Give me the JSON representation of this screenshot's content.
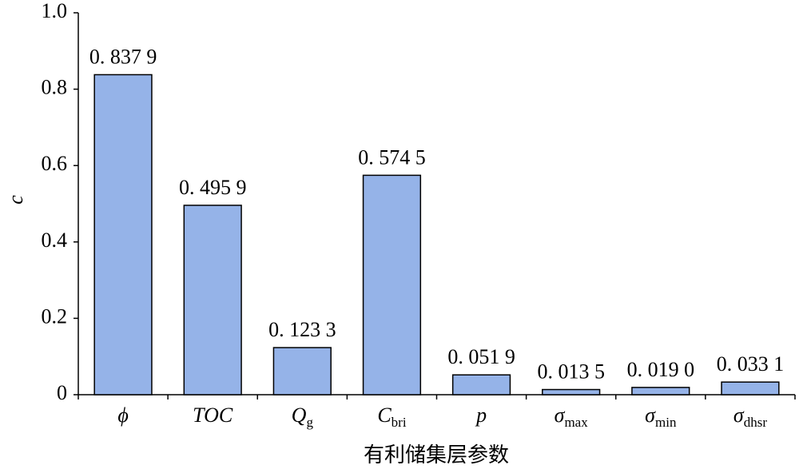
{
  "chart_data": {
    "type": "bar",
    "x_label": "有利储集层参数",
    "y_label": "c",
    "categories": [
      {
        "base": "ϕ"
      },
      {
        "base": "TOC"
      },
      {
        "base": "Q",
        "sub": "g"
      },
      {
        "base": "C",
        "sub": "bri"
      },
      {
        "base": "p"
      },
      {
        "base": "σ",
        "sub": "max"
      },
      {
        "base": "σ",
        "sub": "min"
      },
      {
        "base": "σ",
        "sub": "dhsr"
      }
    ],
    "values": [
      0.8379,
      0.4959,
      0.1233,
      0.5745,
      0.0519,
      0.0135,
      0.019,
      0.0331
    ],
    "value_labels": [
      "0. 837 9",
      "0. 495 9",
      "0. 123 3",
      "0. 574 5",
      "0. 051 9",
      "0. 013 5",
      "0. 019 0",
      "0. 033 1"
    ],
    "color": "#95b3e8",
    "ylim": [
      0,
      1
    ],
    "yticks": [
      0,
      0.2,
      0.4,
      0.6,
      0.8,
      {
        "value": 1,
        "label": "1.0"
      }
    ],
    "grid": false
  }
}
